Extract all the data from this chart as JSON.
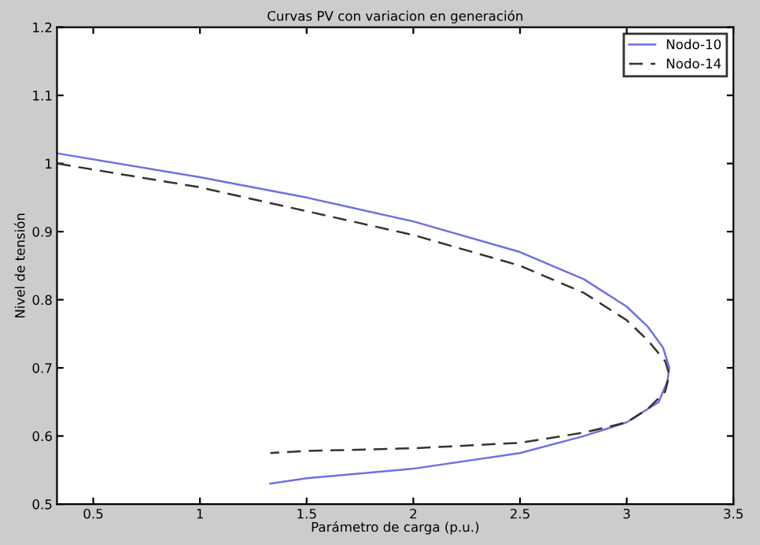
{
  "chart_data": {
    "type": "line",
    "title": "Curvas PV con variacion en generación",
    "xlabel": "Parámetro de carga (p.u.)",
    "ylabel": "Nivel de tensión",
    "xlim": [
      0.33,
      3.5
    ],
    "xticks": [
      0.5,
      1,
      1.5,
      2,
      2.5,
      3,
      3.5
    ],
    "ylim": [
      0.5,
      1.2
    ],
    "yticks": [
      0.5,
      0.6,
      0.7,
      0.8,
      0.9,
      1,
      1.1,
      1.2
    ],
    "grid": false,
    "legend": "top right",
    "marker": "none",
    "series": [
      {
        "name": "Nodo-10",
        "color": "#6f6fe6",
        "line_style": "solid",
        "x": [
          0.33,
          1.0,
          1.5,
          2.0,
          2.5,
          2.8,
          3.0,
          3.1,
          3.17,
          3.2,
          3.19,
          3.15,
          3.0,
          2.8,
          2.5,
          2.0,
          1.5,
          1.33
        ],
        "values": [
          1.015,
          0.98,
          0.95,
          0.915,
          0.87,
          0.83,
          0.79,
          0.76,
          0.73,
          0.7,
          0.68,
          0.65,
          0.62,
          0.6,
          0.575,
          0.552,
          0.538,
          0.53
        ]
      },
      {
        "name": "Nodo-14",
        "color": "#333333",
        "line_style": "dashed",
        "x": [
          0.33,
          1.0,
          1.5,
          2.0,
          2.5,
          2.8,
          3.0,
          3.1,
          3.18,
          3.2,
          3.18,
          3.1,
          3.0,
          2.8,
          2.5,
          2.0,
          1.5,
          1.33
        ],
        "values": [
          1.0,
          0.965,
          0.93,
          0.895,
          0.85,
          0.81,
          0.77,
          0.74,
          0.71,
          0.69,
          0.665,
          0.64,
          0.62,
          0.605,
          0.59,
          0.582,
          0.578,
          0.575
        ]
      }
    ]
  }
}
